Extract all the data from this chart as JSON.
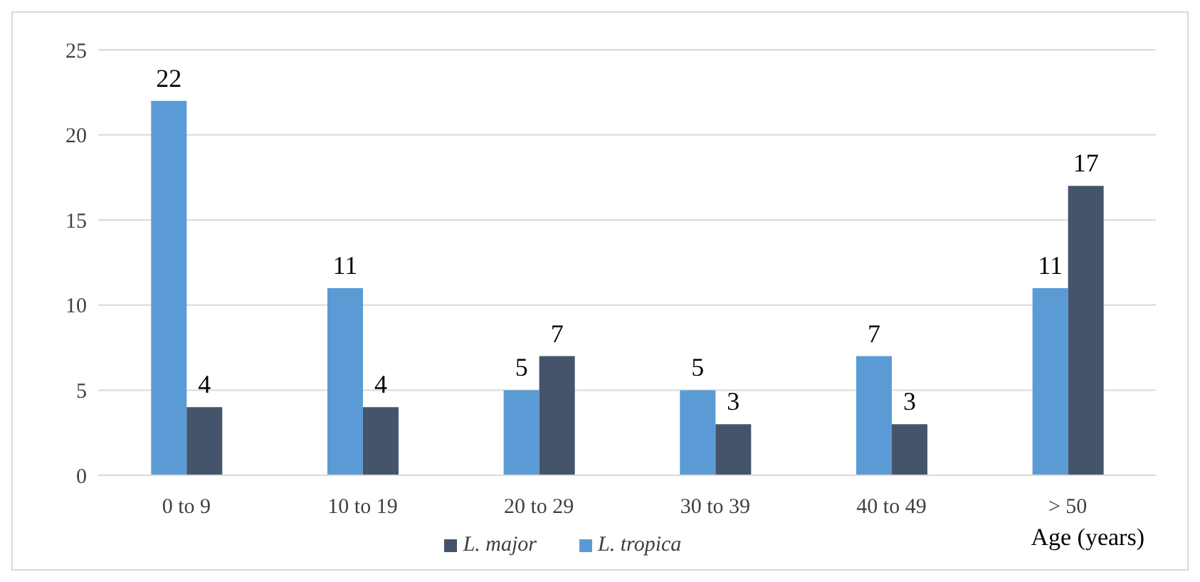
{
  "chart_data": {
    "type": "bar",
    "xlabel": "Age (years)",
    "categories": [
      "0 to 9",
      "10 to 19",
      "20 to 29",
      "30 to 39",
      "40 to 49",
      "> 50"
    ],
    "series": [
      {
        "name": "L. tropica",
        "color": "#5b9bd5",
        "values": [
          22,
          11,
          5,
          5,
          7,
          11
        ]
      },
      {
        "name": "L. major",
        "color": "#44546a",
        "values": [
          4,
          4,
          7,
          3,
          3,
          17
        ]
      }
    ],
    "ylim": [
      0,
      25
    ],
    "yticks": [
      0,
      5,
      10,
      15,
      20,
      25
    ],
    "grid": "y",
    "legend": "bottom",
    "data_labels": true
  }
}
